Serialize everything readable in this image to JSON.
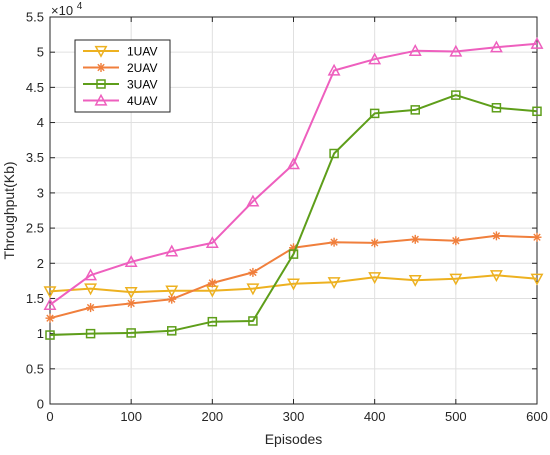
{
  "chart_data": {
    "type": "line",
    "xlabel": "Episodes",
    "ylabel": "Throughput(Kb)",
    "x": [
      0,
      50,
      100,
      150,
      200,
      250,
      300,
      350,
      400,
      450,
      500,
      550,
      600
    ],
    "xlim": [
      0,
      600
    ],
    "ylim": [
      0,
      55000
    ],
    "xticks": [
      0,
      100,
      200,
      300,
      400,
      500,
      600
    ],
    "yticks": [
      0,
      5000,
      10000,
      15000,
      20000,
      25000,
      30000,
      35000,
      40000,
      45000,
      50000,
      55000
    ],
    "ytick_labels": [
      "0",
      "0.5",
      "1",
      "1.5",
      "2",
      "2.5",
      "3",
      "3.5",
      "4",
      "4.5",
      "5",
      "5.5"
    ],
    "y_exponent_base": "×10",
    "y_exponent_power": "4",
    "grid": true,
    "legend_position": "top-left",
    "series": [
      {
        "name": "1UAV",
        "color": "#EDB120",
        "marker": "triangle-down",
        "values": [
          16000,
          16400,
          15900,
          16100,
          16100,
          16400,
          17100,
          17300,
          18000,
          17600,
          17800,
          18300,
          17800
        ]
      },
      {
        "name": "2UAV",
        "color": "#F07F3C",
        "marker": "asterisk",
        "values": [
          12200,
          13700,
          14300,
          14900,
          17200,
          18700,
          22200,
          23000,
          22900,
          23400,
          23200,
          23900,
          23700
        ]
      },
      {
        "name": "3UAV",
        "color": "#5E9E1A",
        "marker": "square",
        "values": [
          9800,
          10000,
          10100,
          10400,
          11700,
          11800,
          21300,
          35600,
          41300,
          41800,
          43900,
          42100,
          41600
        ]
      },
      {
        "name": "4UAV",
        "color": "#EE5FBE",
        "marker": "triangle-up",
        "values": [
          14100,
          18300,
          20200,
          21700,
          22900,
          28800,
          34100,
          47400,
          49000,
          50200,
          50100,
          50700,
          51200
        ]
      }
    ]
  }
}
